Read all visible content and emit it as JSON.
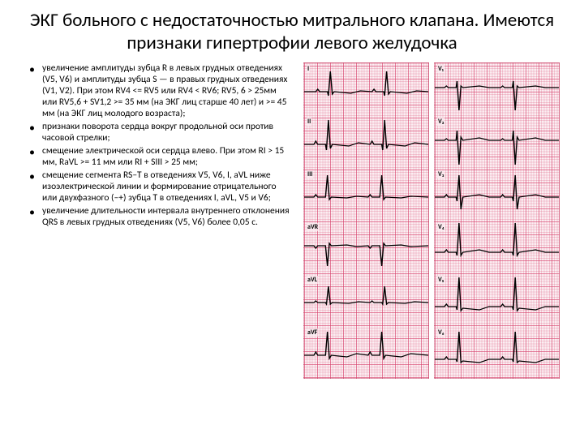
{
  "title": "ЭКГ больного с недостаточностью митрального клапана. Имеются признаки гипертрофии левого желудочка",
  "bullets": [
    "увеличение амплитуды зубца R в левых грудных отведениях (V5, V6) и амплитуды зубца S — в правых грудных отведениях (V1, V2). При этом RV4 <= RV5 или RV4 < RV6; RV5, 6 > 25мм или RV5,6 + SV1,2 >= 35 мм (на ЭКГ лиц старше 40 лет) и >= 45 мм (на ЭКГ лиц молодого возраста);",
    "признаки поворота сердца вокруг продольной оси против часовой стрелки;",
    "смещение электрической оси сердца влево. При этом RI > 15 мм, RaVL >= 11 мм или RI + SIII > 25 мм;",
    "смещение сегмента RS–T в отведениях V5, V6, I, aVL ниже изоэлектрической линии и формирование отрицательного или двухфазного (–+) зубца T в отведениях I, aVL, V5 и V6;",
    "увеличение длительности интервала внутреннего отклонения QRS в левых грудных отведениях (V5, V6) более 0,05 с."
  ],
  "ecg_leads_left": [
    "I",
    "II",
    "III",
    "aVR",
    "aVL",
    "aVF"
  ],
  "ecg_leads_right": [
    "V₁",
    "V₂",
    "V₃",
    "V₄",
    "V₅",
    "V₆"
  ],
  "waves_left": [
    "M0,35 L12,35 14,32 16,35 24,35 25,40 27,10 29,38 31,35 48,37 58,34 70,35 72,32 74,35 82,35 83,40 85,10 87,38 89,35 106,37 116,34 128,35",
    "M0,35 L10,35 12,31 14,35 22,35 23,42 25,5 27,40 29,35 46,37 56,33 68,35 70,31 72,35 80,35 81,42 83,5 85,40 87,35 104,37 114,33 128,35",
    "M0,35 L10,35 12,32 14,35 22,35 24,8 26,38 28,35 44,36 54,34 66,35 68,32 70,35 78,35 80,8 82,38 84,35 100,36 110,34 128,35",
    "M0,30 L10,30 12,33 14,30 22,30 24,55 26,27 28,30 44,29 54,31 66,30 68,33 70,30 78,30 80,55 82,27 84,30 100,29 110,31 128,30",
    "M0,35 L10,35 12,33 14,35 22,35 23,37 25,15 27,37 29,35 46,36 56,34 68,35 70,33 72,35 80,35 81,37 83,15 85,37 87,35 104,36 114,34 128,35",
    "M0,35 L10,35 12,31 14,35 22,35 24,6 26,39 28,35 44,37 54,33 66,35 68,31 70,35 78,35 80,6 82,39 84,35 100,37 110,33 128,35"
  ],
  "waves_right": [
    "M0,30 L10,30 12,28 14,30 22,30 23,22 25,58 27,28 29,30 46,28 56,30 68,30 70,28 72,30 80,30 81,22 83,58 85,28 87,30 104,28 114,30 128,30",
    "M0,30 L10,30 12,28 14,30 22,30 23,18 25,60 27,26 29,30 46,27 56,30 68,30 70,28 72,30 80,30 81,18 83,60 85,26 87,30 104,27 114,30 128,30",
    "M0,35 L10,35 12,32 14,35 22,35 23,40 25,8 27,50 29,35 46,32 56,35 68,35 70,32 72,35 80,35 81,40 83,8 85,50 87,35 104,32 114,35 128,35",
    "M0,38 L10,38 12,35 14,38 22,38 23,42 25,2 27,42 29,38 46,35 56,38 68,38 70,35 72,38 80,38 81,42 83,2 85,42 87,38 104,35 114,38 128,38",
    "M0,40 L10,40 12,37 14,40 22,40 23,44 25,4 27,45 29,42 46,44 56,40 68,40 70,37 72,40 80,40 81,44 83,4 85,45 87,42 104,44 114,40 128,40",
    "M0,40 L10,40 12,37 14,40 22,40 23,43 25,6 27,44 29,42 46,44 56,40 68,40 70,37 72,40 80,40 81,43 83,6 85,44 87,42 104,44 114,40 128,40"
  ]
}
